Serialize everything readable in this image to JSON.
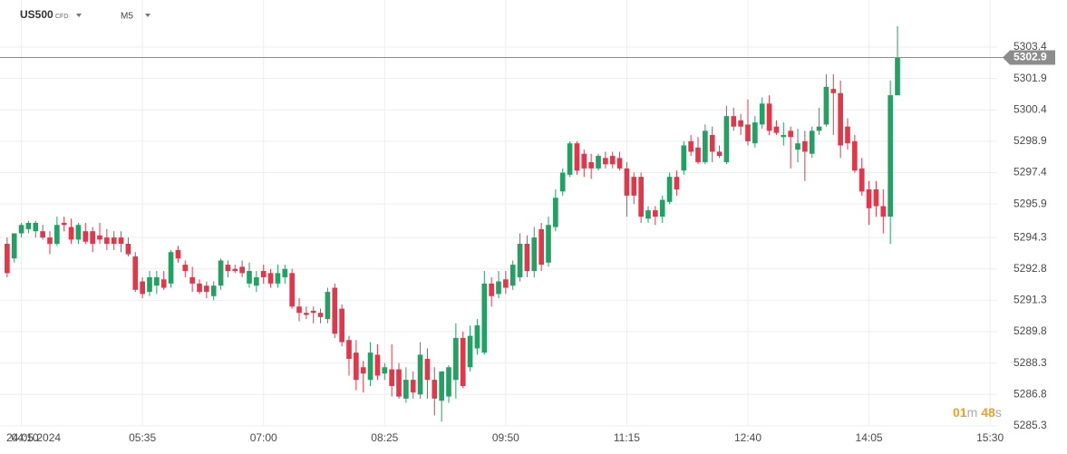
{
  "chart_data": {
    "type": "candlestick",
    "symbol": "US500",
    "symbol_tag": "CFD",
    "timeframe": "M5",
    "date_label": "24.05.2024",
    "x": [
      "04:00",
      "04:05",
      "04:10",
      "04:15",
      "04:20",
      "04:25",
      "04:30",
      "04:35",
      "04:40",
      "04:45",
      "04:50",
      "04:55",
      "05:00",
      "05:05",
      "05:10",
      "05:15",
      "05:20",
      "05:25",
      "05:30",
      "05:35",
      "05:40",
      "05:45",
      "05:50",
      "05:55",
      "06:00",
      "06:05",
      "06:10",
      "06:15",
      "06:20",
      "06:25",
      "06:30",
      "06:35",
      "06:40",
      "06:45",
      "06:50",
      "06:55",
      "07:00",
      "07:05",
      "07:10",
      "07:15",
      "07:20",
      "07:25",
      "07:30",
      "07:35",
      "07:40",
      "07:45",
      "07:50",
      "07:55",
      "08:00",
      "08:05",
      "08:10",
      "08:15",
      "08:20",
      "08:25",
      "08:30",
      "08:35",
      "08:40",
      "08:45",
      "08:50",
      "08:55",
      "09:00",
      "09:05",
      "09:10",
      "09:15",
      "09:20",
      "09:25",
      "09:30",
      "09:35",
      "09:40",
      "09:45",
      "09:50",
      "09:55",
      "10:00",
      "10:05",
      "10:10",
      "10:15",
      "10:20",
      "10:25",
      "10:30",
      "10:35",
      "10:40",
      "10:45",
      "10:50",
      "10:55",
      "11:00",
      "11:05",
      "11:10",
      "11:15",
      "11:20",
      "11:25",
      "11:30",
      "11:35",
      "11:40",
      "11:45",
      "11:50",
      "11:55",
      "12:00",
      "12:05",
      "12:10",
      "12:15",
      "12:20",
      "12:25",
      "12:30",
      "12:35",
      "12:40",
      "12:45",
      "12:50",
      "12:55",
      "13:00",
      "13:05",
      "13:10",
      "13:15",
      "13:20",
      "13:25",
      "13:30",
      "13:35",
      "13:40",
      "13:45",
      "13:50",
      "13:55",
      "14:00",
      "14:05",
      "14:10",
      "14:15",
      "14:20",
      "14:25"
    ],
    "open": [
      5294.0,
      5293.3,
      5294.5,
      5294.7,
      5294.6,
      5294.6,
      5294.3,
      5294.0,
      5295.0,
      5294.8,
      5294.2,
      5294.6,
      5294.6,
      5294.4,
      5294.3,
      5294.3,
      5294.3,
      5294.0,
      5293.4,
      5292.2,
      5291.7,
      5292.0,
      5292.3,
      5292.1,
      5293.7,
      5293.0,
      5292.4,
      5292.1,
      5292.0,
      5291.5,
      5292.0,
      5293.0,
      5292.8,
      5292.9,
      5292.1,
      5292.0,
      5292.7,
      5292.6,
      5292.1,
      5292.4,
      5292.6,
      5291.0,
      5290.7,
      5290.8,
      5290.7,
      5290.4,
      5291.9,
      5290.9,
      5289.4,
      5288.8,
      5288.1,
      5287.5,
      5288.7,
      5287.8,
      5288.0,
      5288.0,
      5286.6,
      5287.5,
      5286.8,
      5288.5,
      5287.5,
      5286.5,
      5286.7,
      5287.5,
      5289.5,
      5288.1,
      5289.0,
      5288.8,
      5292.1,
      5291.6,
      5292.3,
      5292.0,
      5292.4,
      5294.0,
      5292.7,
      5294.7,
      5293.1,
      5294.8,
      5296.5,
      5297.3,
      5298.8,
      5298.3,
      5297.9,
      5297.6,
      5298.1,
      5298.2,
      5298.1,
      5297.6,
      5297.2,
      5297.2,
      5295.2,
      5295.6,
      5295.3,
      5296.0,
      5297.2,
      5297.5,
      5298.9,
      5298.6,
      5297.9,
      5299.2,
      5298.4,
      5297.9,
      5300.1,
      5299.9,
      5299.7,
      5298.8,
      5299.7,
      5300.7,
      5299.6,
      5299.1,
      5299.4,
      5298.5,
      5298.9,
      5298.3,
      5299.4,
      5299.7,
      5301.4,
      5301.2,
      5299.6,
      5298.9,
      5297.6,
      5296.6,
      5296.6,
      5295.8,
      5295.3,
      5301.1
    ],
    "high": [
      5294.3,
      5294.3,
      5295.0,
      5295.1,
      5295.1,
      5294.9,
      5294.6,
      5295.3,
      5295.3,
      5295.2,
      5295.0,
      5295.0,
      5294.8,
      5295.0,
      5294.7,
      5294.6,
      5294.6,
      5294.3,
      5293.6,
      5292.4,
      5292.7,
      5292.7,
      5292.7,
      5293.7,
      5293.9,
      5293.2,
      5292.9,
      5292.3,
      5292.2,
      5292.2,
      5293.3,
      5293.2,
      5293.0,
      5293.2,
      5293.1,
      5292.7,
      5293.0,
      5292.8,
      5293.0,
      5293.0,
      5292.8,
      5291.4,
      5291.0,
      5291.0,
      5290.9,
      5291.9,
      5292.1,
      5291.1,
      5289.6,
      5289.4,
      5288.4,
      5289.3,
      5289.2,
      5288.3,
      5289.2,
      5288.3,
      5288.1,
      5287.9,
      5289.3,
      5289.0,
      5288.1,
      5287.9,
      5288.2,
      5290.2,
      5289.8,
      5290.1,
      5290.4,
      5292.7,
      5292.4,
      5292.7,
      5292.7,
      5293.2,
      5294.5,
      5294.4,
      5294.8,
      5295.0,
      5295.3,
      5296.6,
      5297.6,
      5298.9,
      5298.9,
      5298.5,
      5298.3,
      5298.3,
      5298.4,
      5298.4,
      5298.4,
      5297.9,
      5297.4,
      5297.4,
      5295.8,
      5295.8,
      5296.3,
      5297.4,
      5297.5,
      5298.9,
      5299.2,
      5299.1,
      5299.7,
      5299.6,
      5298.7,
      5300.6,
      5300.5,
      5300.2,
      5300.9,
      5300.1,
      5301.0,
      5301.1,
      5299.9,
      5299.8,
      5299.6,
      5299.5,
      5299.4,
      5299.6,
      5300.5,
      5302.1,
      5302.1,
      5301.8,
      5300.0,
      5299.2,
      5298.1,
      5297.0,
      5297.0,
      5296.6,
      5301.8,
      5304.4
    ],
    "low": [
      5292.4,
      5293.1,
      5294.3,
      5294.5,
      5294.3,
      5294.2,
      5293.5,
      5293.9,
      5294.6,
      5294.0,
      5294.0,
      5294.0,
      5293.6,
      5294.0,
      5293.7,
      5293.7,
      5293.6,
      5293.4,
      5291.7,
      5291.4,
      5291.5,
      5291.6,
      5291.8,
      5291.9,
      5293.1,
      5292.4,
      5291.7,
      5291.6,
      5291.4,
      5291.3,
      5291.8,
      5292.4,
      5292.6,
      5292.4,
      5291.9,
      5291.7,
      5292.1,
      5291.9,
      5291.9,
      5292.1,
      5290.9,
      5290.3,
      5290.4,
      5290.2,
      5290.2,
      5290.2,
      5289.5,
      5289.1,
      5287.7,
      5287.0,
      5286.9,
      5287.2,
      5287.5,
      5287.5,
      5286.7,
      5286.6,
      5286.4,
      5286.6,
      5286.6,
      5286.6,
      5285.8,
      5285.5,
      5286.4,
      5286.6,
      5287.1,
      5287.9,
      5288.7,
      5288.7,
      5291.0,
      5291.4,
      5291.6,
      5291.8,
      5292.2,
      5292.4,
      5292.4,
      5292.7,
      5292.9,
      5294.6,
      5296.3,
      5297.2,
      5297.3,
      5297.2,
      5297.1,
      5297.5,
      5297.6,
      5297.6,
      5297.5,
      5295.3,
      5295.9,
      5295.0,
      5295.0,
      5294.9,
      5295.0,
      5295.9,
      5296.3,
      5297.3,
      5298.2,
      5297.8,
      5297.8,
      5297.9,
      5298.1,
      5297.8,
      5299.4,
      5299.2,
      5298.7,
      5298.6,
      5299.5,
      5299.2,
      5299.2,
      5298.7,
      5297.6,
      5297.9,
      5297.0,
      5298.1,
      5299.2,
      5299.6,
      5299.2,
      5298.1,
      5298.5,
      5297.4,
      5296.3,
      5294.9,
      5295.3,
      5294.5,
      5294.0,
      5301.1
    ],
    "close": [
      5292.6,
      5294.5,
      5294.9,
      5295.0,
      5295.0,
      5294.3,
      5294.0,
      5294.9,
      5294.9,
      5294.2,
      5294.9,
      5294.1,
      5294.0,
      5294.2,
      5294.0,
      5294.0,
      5294.0,
      5293.5,
      5291.8,
      5291.6,
      5292.4,
      5292.4,
      5291.9,
      5293.6,
      5293.3,
      5292.7,
      5292.1,
      5291.7,
      5291.7,
      5292.0,
      5293.2,
      5292.7,
      5292.7,
      5292.6,
      5292.7,
      5292.4,
      5292.4,
      5292.1,
      5292.6,
      5292.8,
      5291.0,
      5290.7,
      5290.6,
      5290.7,
      5290.5,
      5291.7,
      5289.7,
      5289.3,
      5288.5,
      5287.5,
      5287.8,
      5288.8,
      5287.7,
      5288.1,
      5287.2,
      5286.7,
      5287.5,
      5286.9,
      5288.7,
      5287.5,
      5286.6,
      5287.9,
      5288.1,
      5289.5,
      5287.2,
      5289.6,
      5290.1,
      5292.1,
      5291.5,
      5292.2,
      5291.9,
      5293.0,
      5294.0,
      5292.7,
      5294.3,
      5293.0,
      5294.9,
      5296.2,
      5297.4,
      5298.8,
      5297.5,
      5297.6,
      5297.6,
      5298.2,
      5297.8,
      5297.8,
      5297.6,
      5296.3,
      5296.3,
      5295.3,
      5295.6,
      5295.3,
      5296.1,
      5297.2,
      5296.6,
      5298.7,
      5298.4,
      5297.9,
      5299.4,
      5298.4,
      5298.2,
      5300.1,
      5299.6,
      5299.6,
      5298.9,
      5299.8,
      5300.7,
      5299.4,
      5299.3,
      5299.2,
      5299.1,
      5298.8,
      5298.4,
      5299.4,
      5299.6,
      5301.5,
      5301.2,
      5298.7,
      5298.8,
      5297.5,
      5296.5,
      5295.7,
      5295.8,
      5295.3,
      5301.1,
      5302.9
    ],
    "up_color": "#23a165",
    "down_color": "#e2374b",
    "last_price": 5302.9,
    "last_price_color": "#8c8c8c",
    "xlim": [
      "03:55",
      "15:35"
    ],
    "xticks": [
      "04:10",
      "05:35",
      "07:00",
      "08:25",
      "09:50",
      "11:15",
      "12:40",
      "14:05",
      "15:30"
    ],
    "ylim": [
      5284.43,
      5305.65
    ],
    "yticks": [
      5303.4,
      5301.9,
      5300.4,
      5298.9,
      5297.4,
      5295.9,
      5294.3,
      5292.8,
      5291.3,
      5289.8,
      5288.3,
      5286.8,
      5285.3
    ],
    "grid": true,
    "countdown": {
      "minutes": "01",
      "minutes_unit": "m",
      "seconds": "48",
      "seconds_unit": "s"
    }
  }
}
